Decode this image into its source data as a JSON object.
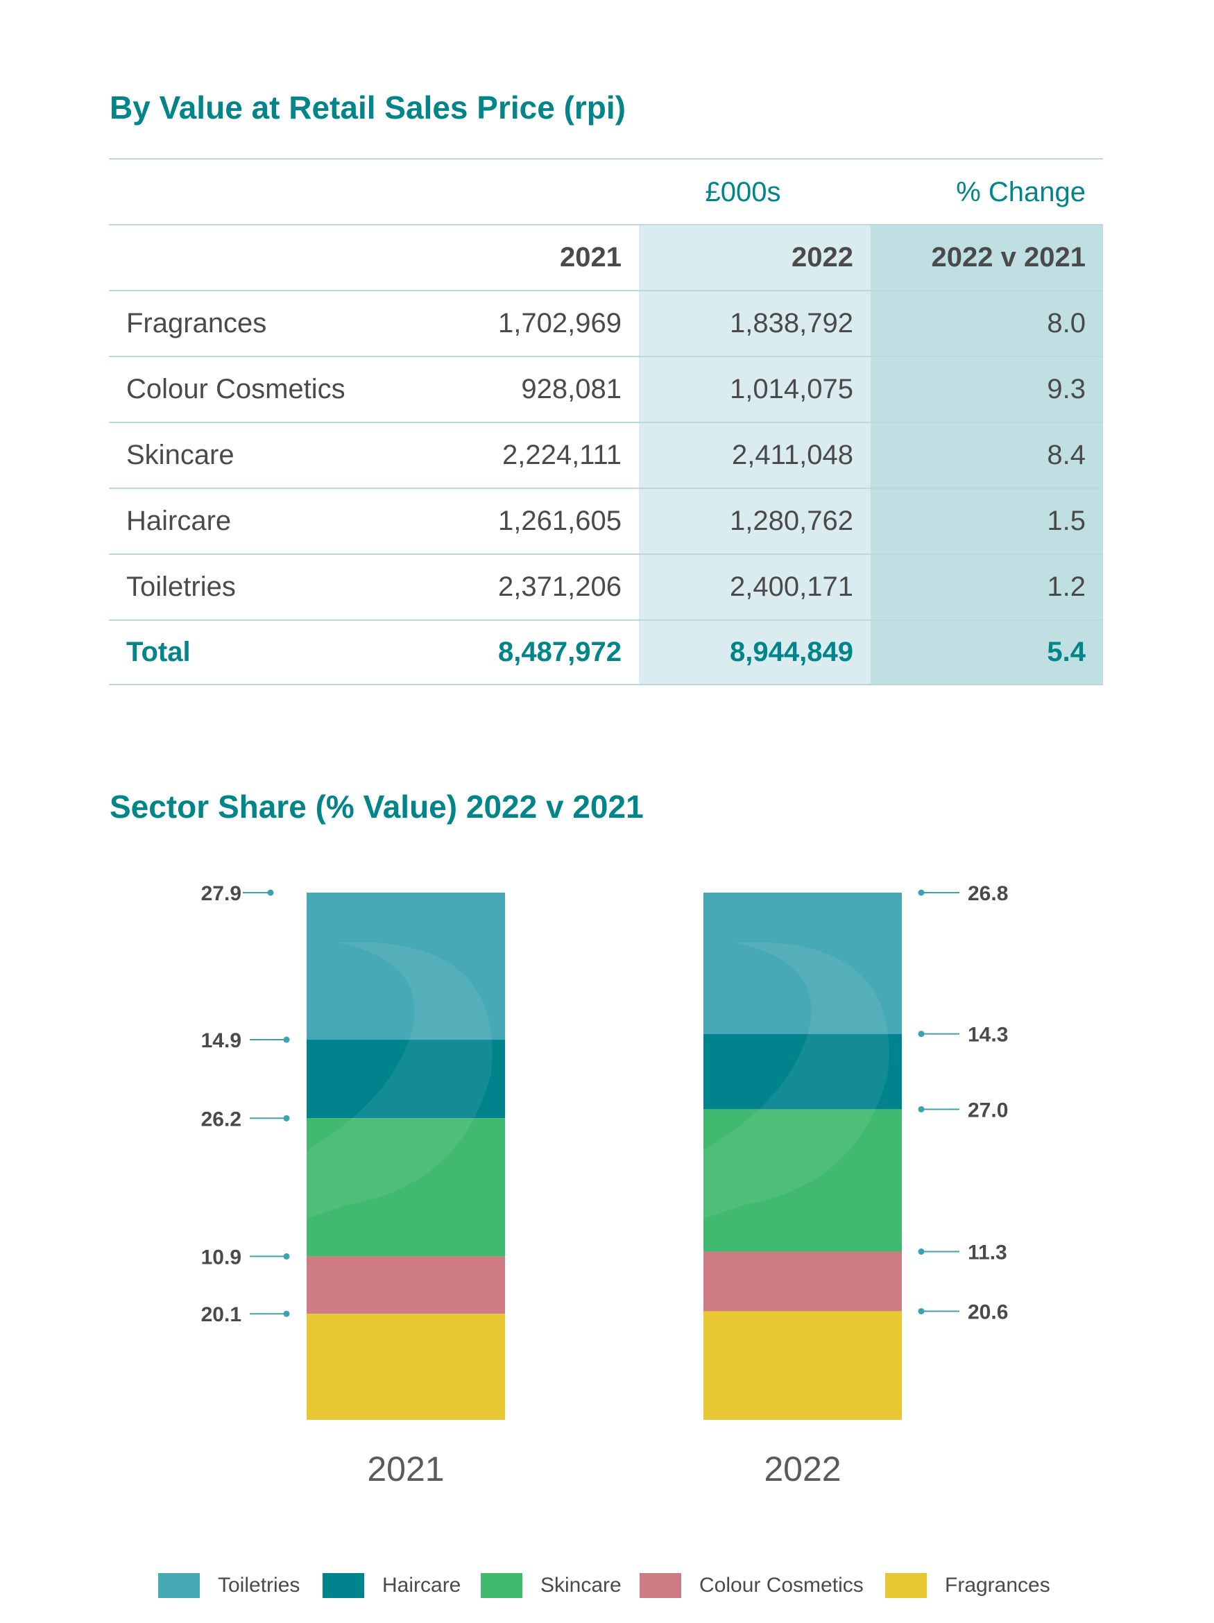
{
  "table": {
    "title": "By Value at Retail Sales Price (rpi)",
    "header_money": "£000s",
    "header_pct": "% Change",
    "columns": [
      "",
      "2021",
      "2022",
      "2022 v 2021"
    ],
    "rows": [
      {
        "name": "Fragrances",
        "v2021": "1,702,969",
        "v2022": "1,838,792",
        "change": "8.0"
      },
      {
        "name": "Colour Cosmetics",
        "v2021": "928,081",
        "v2022": "1,014,075",
        "change": "9.3"
      },
      {
        "name": "Skincare",
        "v2021": "2,224,111",
        "v2022": "2,411,048",
        "change": "8.4"
      },
      {
        "name": "Haircare",
        "v2021": "1,261,605",
        "v2022": "1,280,762",
        "change": "1.5"
      },
      {
        "name": "Toiletries",
        "v2021": "2,371,206",
        "v2022": "2,400,171",
        "change": "1.2"
      }
    ],
    "total": {
      "name": "Total",
      "v2021": "8,487,972",
      "v2022": "8,944,849",
      "change": "5.4"
    }
  },
  "chart_data": {
    "type": "bar",
    "stacked": true,
    "title": "Sector Share (% Value) 2022 v 2021",
    "categories": [
      "2021",
      "2022"
    ],
    "series": [
      {
        "name": "Toiletries",
        "values": [
          27.9,
          26.8
        ],
        "color": "#47a9b5"
      },
      {
        "name": "Haircare",
        "values": [
          14.9,
          14.3
        ],
        "color": "#00838d"
      },
      {
        "name": "Skincare",
        "values": [
          26.2,
          27.0
        ],
        "color": "#41b96e"
      },
      {
        "name": "Colour Cosmetics",
        "values": [
          10.9,
          11.3
        ],
        "color": "#cf7b83"
      },
      {
        "name": "Fragrances",
        "values": [
          20.1,
          20.6
        ],
        "color": "#e8c832"
      }
    ],
    "legend_position": "bottom",
    "label_color": "#3aa3b3"
  }
}
